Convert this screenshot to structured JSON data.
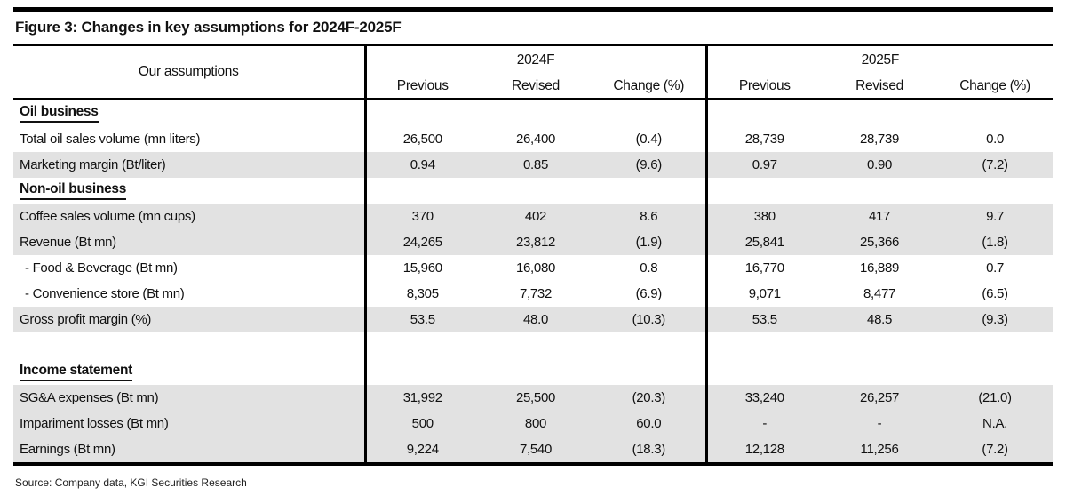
{
  "figure": {
    "title": "Figure 3: Changes in key assumptions for 2024F-2025F",
    "source": "Source: Company data, KGI Securities Research"
  },
  "colors": {
    "row_shade": "#e2e2e2",
    "border": "#000000",
    "text": "#111111"
  },
  "table": {
    "assumptions_header": "Our assumptions",
    "year_groups": [
      {
        "label": "2024F",
        "columns": [
          "Previous",
          "Revised",
          "Change (%)"
        ]
      },
      {
        "label": "2025F",
        "columns": [
          "Previous",
          "Revised",
          "Change (%)"
        ]
      }
    ],
    "rows": [
      {
        "type": "section",
        "label": "Oil business",
        "shaded": false,
        "values": [
          "",
          "",
          "",
          "",
          "",
          ""
        ]
      },
      {
        "type": "data",
        "label": "Total oil sales volume (mn liters)",
        "shaded": false,
        "values": [
          "26,500",
          "26,400",
          "(0.4)",
          "28,739",
          "28,739",
          "0.0"
        ]
      },
      {
        "type": "data",
        "label": "Marketing margin (Bt/liter)",
        "shaded": true,
        "values": [
          "0.94",
          "0.85",
          "(9.6)",
          "0.97",
          "0.90",
          "(7.2)"
        ]
      },
      {
        "type": "section",
        "label": "Non-oil business",
        "shaded": false,
        "values": [
          "",
          "",
          "",
          "",
          "",
          ""
        ]
      },
      {
        "type": "data",
        "label": "Coffee sales volume (mn cups)",
        "shaded": true,
        "values": [
          "370",
          "402",
          "8.6",
          "380",
          "417",
          "9.7"
        ]
      },
      {
        "type": "data",
        "label": "Revenue (Bt mn)",
        "shaded": true,
        "values": [
          "24,265",
          "23,812",
          "(1.9)",
          "25,841",
          "25,366",
          "(1.8)"
        ]
      },
      {
        "type": "data",
        "label": "- Food & Beverage (Bt mn)",
        "shaded": false,
        "indent": true,
        "values": [
          "15,960",
          "16,080",
          "0.8",
          "16,770",
          "16,889",
          "0.7"
        ]
      },
      {
        "type": "data",
        "label": "- Convenience store (Bt mn)",
        "shaded": false,
        "indent": true,
        "values": [
          "8,305",
          "7,732",
          "(6.9)",
          "9,071",
          "8,477",
          "(6.5)"
        ]
      },
      {
        "type": "data",
        "label": "Gross profit margin (%)",
        "shaded": true,
        "values": [
          "53.5",
          "48.0",
          "(10.3)",
          "53.5",
          "48.5",
          "(9.3)"
        ]
      },
      {
        "type": "spacer",
        "label": "",
        "shaded": false,
        "values": [
          "",
          "",
          "",
          "",
          "",
          ""
        ]
      },
      {
        "type": "section",
        "label": "Income statement",
        "shaded": false,
        "values": [
          "",
          "",
          "",
          "",
          "",
          ""
        ]
      },
      {
        "type": "data",
        "label": "SG&A expenses (Bt mn)",
        "shaded": true,
        "values": [
          "31,992",
          "25,500",
          "(20.3)",
          "33,240",
          "26,257",
          "(21.0)"
        ]
      },
      {
        "type": "data",
        "label": "Impariment losses (Bt mn)",
        "shaded": true,
        "values": [
          "500",
          "800",
          "60.0",
          "-",
          "-",
          "N.A."
        ]
      },
      {
        "type": "data",
        "label": "Earnings (Bt mn)",
        "shaded": true,
        "values": [
          "9,224",
          "7,540",
          "(18.3)",
          "12,128",
          "11,256",
          "(7.2)"
        ]
      }
    ]
  }
}
